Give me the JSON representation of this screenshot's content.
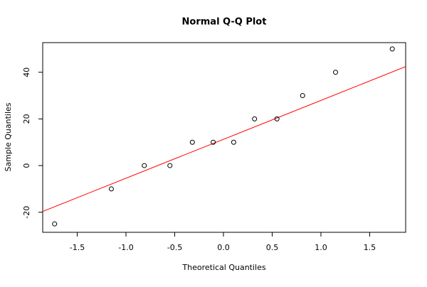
{
  "chart_data": {
    "type": "scatter",
    "title": "Normal Q-Q Plot",
    "xlabel": "Theoretical Quantiles",
    "ylabel": "Sample Quantiles",
    "x": [
      -1.732,
      -1.15,
      -0.812,
      -0.549,
      -0.319,
      -0.105,
      0.105,
      0.319,
      0.549,
      0.812,
      1.15,
      1.732
    ],
    "values": [
      -25,
      -10,
      0,
      0,
      10,
      10,
      10,
      20,
      20,
      30,
      40,
      50
    ],
    "color": "#000000",
    "reference_line": {
      "intercept": 11.25,
      "slope": 16.68,
      "color": "#ff0000"
    },
    "xlim": [
      -1.854,
      1.869
    ],
    "ylim": [
      -28.6,
      52.7
    ],
    "xticks": [
      -1.5,
      {
        "value": -1,
        "label": "-1.0"
      },
      -0.5,
      {
        "value": 0,
        "label": "0.0"
      },
      0.5,
      {
        "value": 1,
        "label": "1.0"
      },
      1.5
    ],
    "yticks": [
      -20,
      0,
      20,
      40
    ]
  }
}
